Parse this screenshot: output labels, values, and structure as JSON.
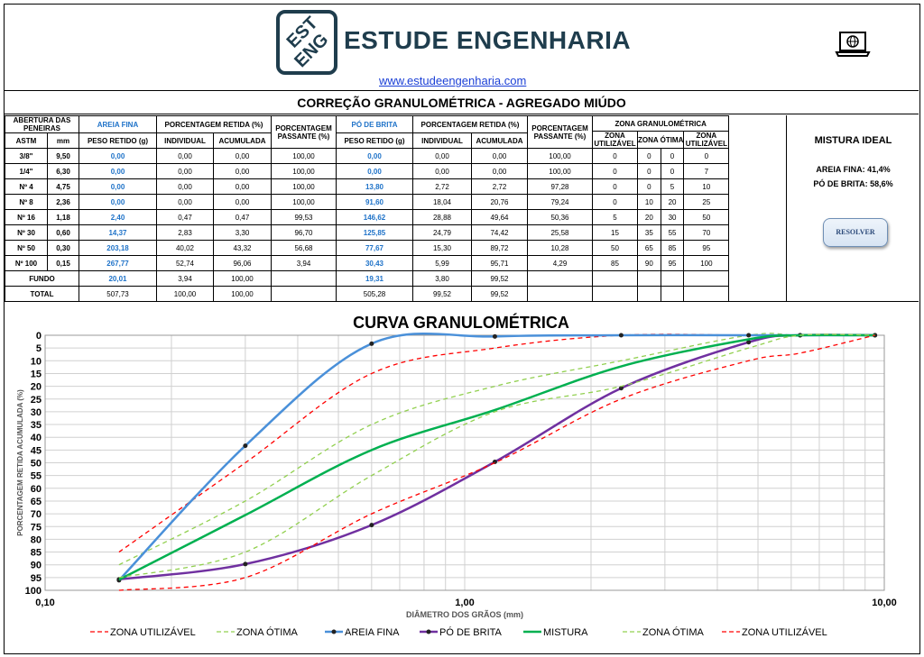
{
  "header": {
    "brand": "ESTUDE ENGENHARIA",
    "logo_l1": "EST",
    "logo_l2": "ENG",
    "site": "www.estudeengenharia.com",
    "icon": "laptop-globe-icon"
  },
  "subtitle": "CORREÇÃO GRANULOMÉTRICA - AGREGADO MIÚDO",
  "table": {
    "h_abertura": "ABERTURA DAS PENEIRAS",
    "h_areia": "AREIA FINA",
    "h_pret": "PORCENTAGEM RETIDA (%)",
    "h_passante": "PORCENTAGEM PASSANTE (%)",
    "h_po": "PÓ DE BRITA",
    "h_zona": "ZONA GRANULOMÉTRICA",
    "h_astm": "ASTM",
    "h_mm": "mm",
    "h_peso": "PESO RETIDO (g)",
    "h_ind": "INDIVIDUAL",
    "h_acum": "ACUMULADA",
    "h_zu": "ZONA UTILIZÁVEL",
    "h_zo": "ZONA ÓTIMA",
    "rows": [
      {
        "astm": "3/8\"",
        "mm": "9,50",
        "a_peso": "0,00",
        "a_ind": "0,00",
        "a_acu": "0,00",
        "a_pas": "100,00",
        "p_peso": "0,00",
        "p_ind": "0,00",
        "p_acu": "0,00",
        "p_pas": "100,00",
        "z1": "0",
        "z2": "0",
        "z3": "0",
        "z4": "0"
      },
      {
        "astm": "1/4\"",
        "mm": "6,30",
        "a_peso": "0,00",
        "a_ind": "0,00",
        "a_acu": "0,00",
        "a_pas": "100,00",
        "p_peso": "0,00",
        "p_ind": "0,00",
        "p_acu": "0,00",
        "p_pas": "100,00",
        "z1": "0",
        "z2": "0",
        "z3": "0",
        "z4": "7"
      },
      {
        "astm": "Nº 4",
        "mm": "4,75",
        "a_peso": "0,00",
        "a_ind": "0,00",
        "a_acu": "0,00",
        "a_pas": "100,00",
        "p_peso": "13,80",
        "p_ind": "2,72",
        "p_acu": "2,72",
        "p_pas": "97,28",
        "z1": "0",
        "z2": "0",
        "z3": "5",
        "z4": "10"
      },
      {
        "astm": "Nº 8",
        "mm": "2,36",
        "a_peso": "0,00",
        "a_ind": "0,00",
        "a_acu": "0,00",
        "a_pas": "100,00",
        "p_peso": "91,60",
        "p_ind": "18,04",
        "p_acu": "20,76",
        "p_pas": "79,24",
        "z1": "0",
        "z2": "10",
        "z3": "20",
        "z4": "25"
      },
      {
        "astm": "Nº 16",
        "mm": "1,18",
        "a_peso": "2,40",
        "a_ind": "0,47",
        "a_acu": "0,47",
        "a_pas": "99,53",
        "p_peso": "146,62",
        "p_ind": "28,88",
        "p_acu": "49,64",
        "p_pas": "50,36",
        "z1": "5",
        "z2": "20",
        "z3": "30",
        "z4": "50"
      },
      {
        "astm": "Nº 30",
        "mm": "0,60",
        "a_peso": "14,37",
        "a_ind": "2,83",
        "a_acu": "3,30",
        "a_pas": "96,70",
        "p_peso": "125,85",
        "p_ind": "24,79",
        "p_acu": "74,42",
        "p_pas": "25,58",
        "z1": "15",
        "z2": "35",
        "z3": "55",
        "z4": "70"
      },
      {
        "astm": "Nº 50",
        "mm": "0,30",
        "a_peso": "203,18",
        "a_ind": "40,02",
        "a_acu": "43,32",
        "a_pas": "56,68",
        "p_peso": "77,67",
        "p_ind": "15,30",
        "p_acu": "89,72",
        "p_pas": "10,28",
        "z1": "50",
        "z2": "65",
        "z3": "85",
        "z4": "95"
      },
      {
        "astm": "Nº 100",
        "mm": "0,15",
        "a_peso": "267,77",
        "a_ind": "52,74",
        "a_acu": "96,06",
        "a_pas": "3,94",
        "p_peso": "30,43",
        "p_ind": "5,99",
        "p_acu": "95,71",
        "p_pas": "4,29",
        "z1": "85",
        "z2": "90",
        "z3": "95",
        "z4": "100"
      }
    ],
    "fundo": {
      "label": "FUNDO",
      "a_peso": "20,01",
      "a_ind": "3,94",
      "a_acu": "100,00",
      "p_peso": "19,31",
      "p_ind": "3,80",
      "p_acu": "99,52"
    },
    "total": {
      "label": "TOTAL",
      "a_peso": "507,73",
      "a_ind": "100,00",
      "a_acu": "100,00",
      "p_peso": "505,28",
      "p_ind": "99,52",
      "p_acu": "99,52"
    }
  },
  "side": {
    "title": "MISTURA IDEAL",
    "areia": "AREIA FINA: 41,4%",
    "po": "PÓ DE BRITA: 58,6%",
    "button": "RESOLVER"
  },
  "chart_data": {
    "type": "line",
    "title": "CURVA GRANULOMÉTRICA",
    "xlabel": "DIÂMETRO DOS GRÃOS (mm)",
    "ylabel": "PORCENTAGEM RETIDA ACUMULADA (%)",
    "x_scale": "log",
    "xlim": [
      0.1,
      10
    ],
    "ylim": [
      0,
      100
    ],
    "y_inverted": true,
    "x_ticks": [
      "0,10",
      "1,00",
      "10,00"
    ],
    "y_ticks": [
      "0",
      "5",
      "10",
      "15",
      "20",
      "25",
      "30",
      "35",
      "40",
      "45",
      "50",
      "55",
      "60",
      "65",
      "70",
      "75",
      "80",
      "85",
      "90",
      "95",
      "100"
    ],
    "x": [
      0.15,
      0.3,
      0.6,
      1.18,
      2.36,
      4.75,
      6.3,
      9.5
    ],
    "series": [
      {
        "name": "ZONA UTILIZÁVEL",
        "color": "#ff0000",
        "dash": true,
        "values": [
          85,
          50,
          15,
          5,
          0,
          0,
          0,
          0
        ]
      },
      {
        "name": "ZONA ÓTIMA",
        "color": "#92d050",
        "dash": true,
        "values": [
          90,
          65,
          35,
          20,
          10,
          0,
          0,
          0
        ]
      },
      {
        "name": "AREIA FINA",
        "color": "#4a90d9",
        "markers": true,
        "values": [
          96.06,
          43.32,
          3.3,
          0.47,
          0,
          0,
          0,
          0
        ]
      },
      {
        "name": "PÓ DE BRITA",
        "color": "#7030a0",
        "markers": true,
        "values": [
          95.71,
          89.72,
          74.42,
          49.64,
          20.76,
          2.72,
          0,
          0
        ]
      },
      {
        "name": "MISTURA",
        "color": "#00b050",
        "values": [
          95.85,
          70.5,
          45,
          29.3,
          12.2,
          1.6,
          0,
          0
        ]
      },
      {
        "name": "ZONA ÓTIMA",
        "color": "#92d050",
        "dash": true,
        "values": [
          95,
          85,
          55,
          30,
          20,
          5,
          0,
          0
        ]
      },
      {
        "name": "ZONA UTILIZÁVEL",
        "color": "#ff0000",
        "dash": true,
        "values": [
          100,
          95,
          70,
          50,
          25,
          10,
          7,
          0
        ]
      }
    ],
    "legend_position": "bottom"
  }
}
